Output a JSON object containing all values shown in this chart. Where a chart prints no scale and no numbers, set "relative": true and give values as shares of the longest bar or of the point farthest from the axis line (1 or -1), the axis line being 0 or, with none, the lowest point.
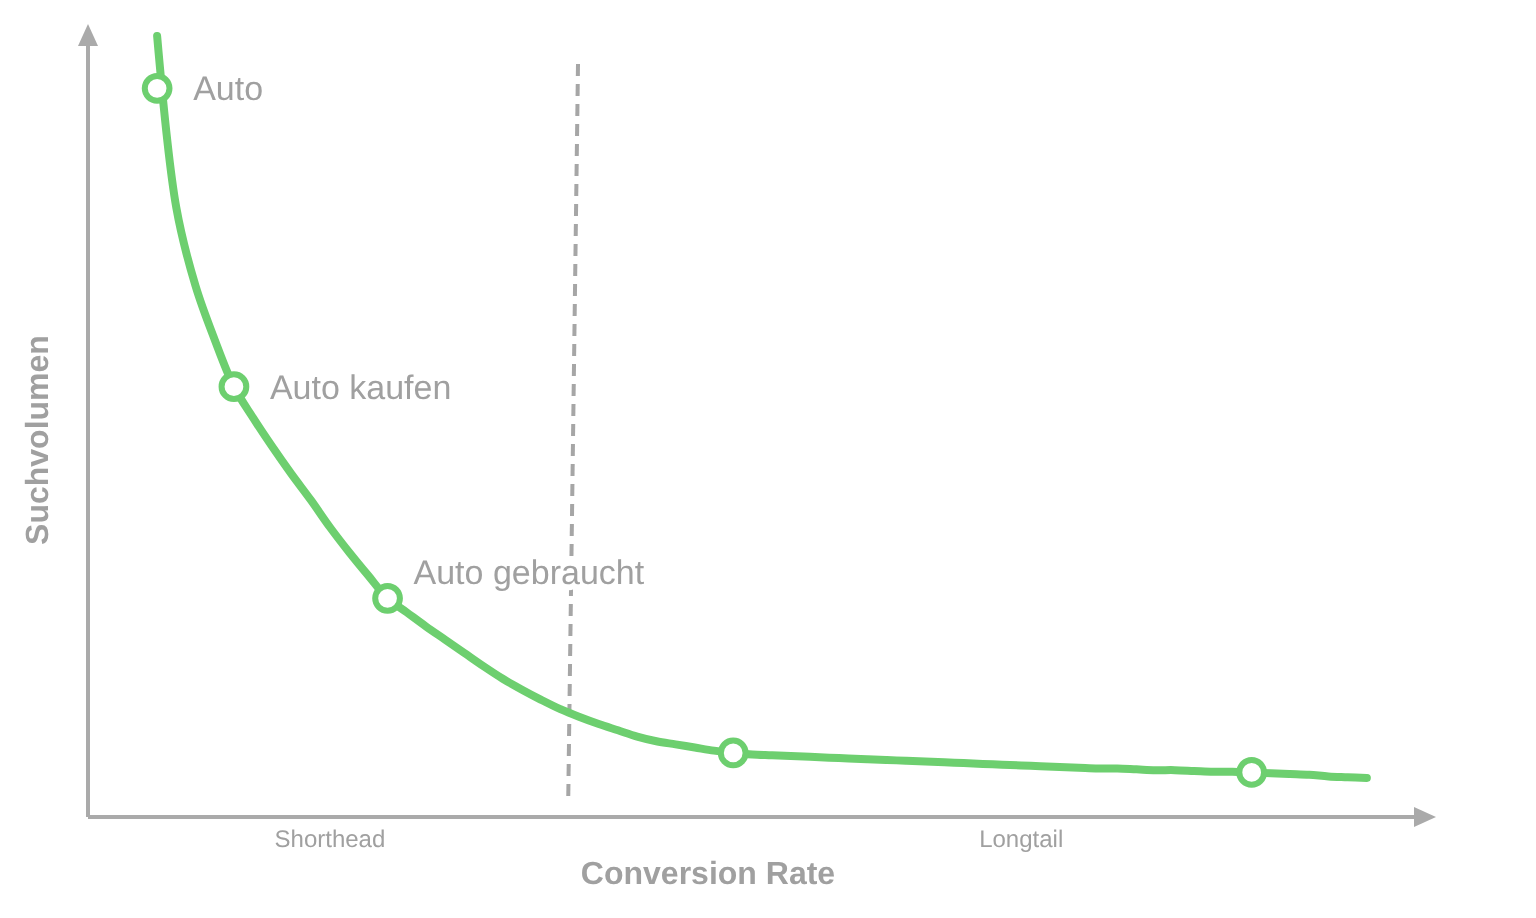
{
  "chart_data": {
    "type": "line",
    "relative": true,
    "xlabel": "Conversion Rate",
    "ylabel": "Suchvolumen",
    "tick_labels": "x",
    "categories": [
      null,
      null,
      null,
      null,
      null,
      null,
      null,
      null,
      null,
      "Shorthead",
      null,
      null,
      null,
      null,
      null,
      null,
      null,
      null,
      null,
      null,
      null,
      null,
      null,
      null,
      null,
      null,
      null,
      null,
      null,
      null,
      null,
      null,
      null,
      null,
      null,
      null,
      null,
      null,
      null,
      null,
      null,
      null,
      null,
      null,
      null,
      "Longtail",
      null,
      null,
      null,
      null,
      null,
      null,
      null,
      null,
      null,
      null,
      null,
      null,
      null,
      null,
      null,
      null,
      null,
      null
    ],
    "series": [
      {
        "type": "line",
        "color": "#6dcf6f",
        "values": [
          1.0,
          0.78,
          0.68,
          0.611,
          0.551,
          0.511,
          0.474,
          0.439,
          0.406,
          0.371,
          0.339,
          0.309,
          0.28,
          0.262,
          0.244,
          0.227,
          0.21,
          0.193,
          0.177,
          0.163,
          0.15,
          0.138,
          0.128,
          0.119,
          0.111,
          0.103,
          0.097,
          0.093,
          0.089,
          0.085,
          0.082,
          0.08,
          0.079,
          0.078,
          0.077,
          0.076,
          0.075,
          0.074,
          0.073,
          0.072,
          0.071,
          0.07,
          0.069,
          0.068,
          0.067,
          0.066,
          0.065,
          0.064,
          0.063,
          0.062,
          0.062,
          0.061,
          0.06,
          0.06,
          0.059,
          0.058,
          0.058,
          0.057,
          0.056,
          0.055,
          0.054,
          0.052,
          0.051,
          0.05
        ]
      },
      {
        "type": "scatter",
        "color": "#6dcf6f",
        "marker": "circle",
        "values": [
          0.933,
          null,
          null,
          null,
          0.551,
          null,
          null,
          null,
          null,
          null,
          null,
          null,
          0.28,
          null,
          null,
          null,
          null,
          null,
          null,
          null,
          null,
          null,
          null,
          null,
          null,
          null,
          null,
          null,
          null,
          null,
          0.082,
          null,
          null,
          null,
          null,
          null,
          null,
          null,
          null,
          null,
          null,
          null,
          null,
          null,
          null,
          null,
          null,
          null,
          null,
          null,
          null,
          null,
          null,
          null,
          null,
          null,
          null,
          0.057,
          null,
          null,
          null,
          null,
          null,
          null
        ]
      }
    ],
    "annotations": [
      "Auto",
      "Auto kaufen",
      "Auto gebraucht"
    ]
  }
}
